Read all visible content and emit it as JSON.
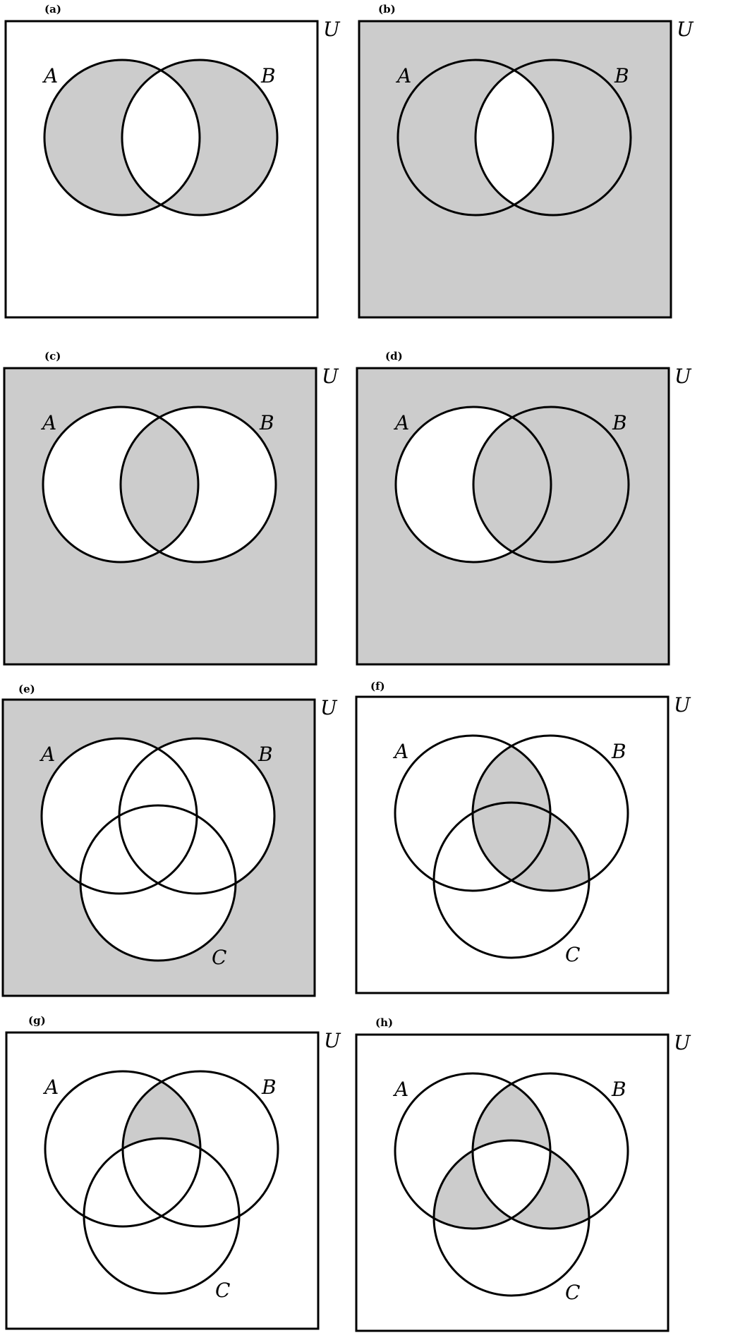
{
  "colors": {
    "shade": "#cccccc",
    "background": "#ffffff",
    "stroke": "#000000"
  },
  "panels": [
    {
      "id": "a",
      "label": "(a)",
      "universe": "U",
      "sets": [
        "A",
        "B"
      ],
      "shaded": "A XOR B"
    },
    {
      "id": "b",
      "label": "(b)",
      "universe": "U",
      "sets": [
        "A",
        "B"
      ],
      "shaded": "complement of (A ∩ B)"
    },
    {
      "id": "c",
      "label": "(c)",
      "universe": "U",
      "sets": [
        "A",
        "B"
      ],
      "shaded": "(A ∩ B) ∪ complement of (A ∪ B)"
    },
    {
      "id": "d",
      "label": "(d)",
      "universe": "U",
      "sets": [
        "A",
        "B"
      ],
      "shaded": "complement of (A \\ B)"
    },
    {
      "id": "e",
      "label": "(e)",
      "universe": "U",
      "sets": [
        "A",
        "B",
        "C"
      ],
      "shaded": "complement of (A ∪ B ∪ C)"
    },
    {
      "id": "f",
      "label": "(f)",
      "universe": "U",
      "sets": [
        "A",
        "B",
        "C"
      ],
      "shaded": "B ∩ (A ∪ C)"
    },
    {
      "id": "g",
      "label": "(g)",
      "universe": "U",
      "sets": [
        "A",
        "B",
        "C"
      ],
      "shaded": "(A ∩ B) \\ C"
    },
    {
      "id": "h",
      "label": "(h)",
      "universe": "U",
      "sets": [
        "A",
        "B",
        "C"
      ],
      "shaded": "pairwise intersections excluding A ∩ B ∩ C"
    }
  ]
}
